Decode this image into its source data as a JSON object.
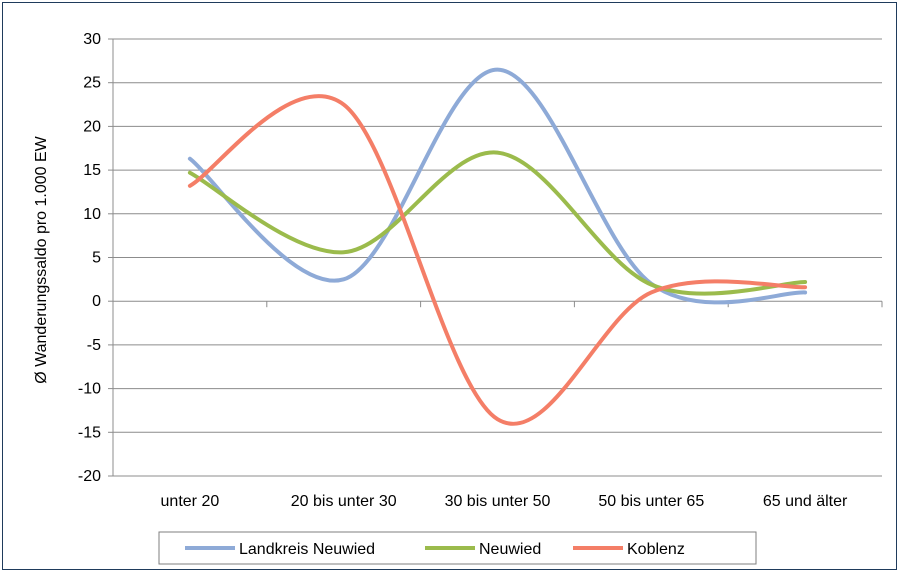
{
  "chart_data": {
    "type": "line",
    "smooth": true,
    "title": "",
    "xlabel": "",
    "ylabel": "Ø Wanderungssaldo pro 1.000 EW",
    "categories": [
      "unter 20",
      "20 bis unter 30",
      "30 bis unter 50",
      "50 bis unter 65",
      "65 und älter"
    ],
    "ylim": [
      -20,
      30
    ],
    "yticks": [
      30,
      25,
      20,
      15,
      10,
      5,
      0,
      -5,
      -10,
      -15,
      -20
    ],
    "grid": true,
    "legend_position": "bottom",
    "series": [
      {
        "name": "Landkreis Neuwied",
        "color": "#8eaad7",
        "values": [
          16.3,
          2.5,
          26.5,
          2.0,
          1.0
        ]
      },
      {
        "name": "Neuwied",
        "color": "#9bbb4c",
        "values": [
          14.7,
          5.6,
          17.0,
          1.9,
          2.2
        ]
      },
      {
        "name": "Koblenz",
        "color": "#f47e67",
        "values": [
          13.2,
          22.5,
          -13.5,
          1.0,
          1.6
        ]
      }
    ]
  }
}
